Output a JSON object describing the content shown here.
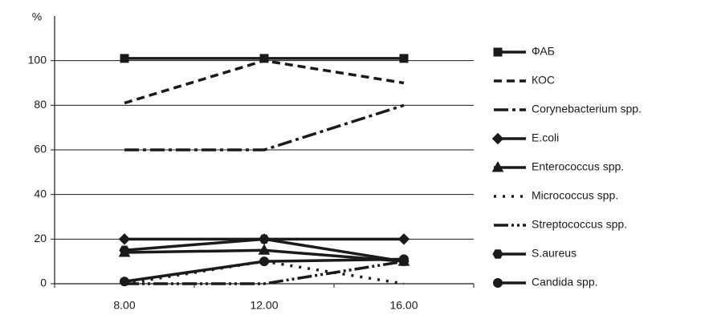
{
  "chart_data": {
    "type": "line",
    "y_label": "%",
    "categories": [
      "8.00",
      "12.00",
      "16.00"
    ],
    "ylim": [
      0,
      120
    ],
    "yticks": [
      0,
      20,
      40,
      60,
      80,
      100
    ],
    "grid": true,
    "series": [
      {
        "name": "ФАБ",
        "color": "#1a1a1a",
        "marker": "square",
        "dash": "solid",
        "values": [
          101,
          101,
          101
        ]
      },
      {
        "name": "КОС",
        "color": "#1a1a1a",
        "marker": "none",
        "dash": "dashed",
        "values": [
          81,
          100,
          90
        ]
      },
      {
        "name": "Corynebacterium spp.",
        "color": "#1a1a1a",
        "marker": "none",
        "dash": "dashdot",
        "values": [
          60,
          60,
          80
        ]
      },
      {
        "name": "E.coli",
        "color": "#1a1a1a",
        "marker": "diamond",
        "dash": "solid",
        "values": [
          20,
          20,
          20
        ]
      },
      {
        "name": "Enterococcus spp.",
        "color": "#1a1a1a",
        "marker": "triangle",
        "dash": "solid",
        "values": [
          14,
          15,
          10
        ]
      },
      {
        "name": "Micrococcus spp.",
        "color": "#1a1a1a",
        "marker": "none",
        "dash": "dotted",
        "values": [
          0,
          10,
          0
        ]
      },
      {
        "name": "Streptococcus spp.",
        "color": "#1a1a1a",
        "marker": "none",
        "dash": "dashdotdot",
        "values": [
          0,
          0,
          10
        ]
      },
      {
        "name": "S.aureus",
        "color": "#1a1a1a",
        "marker": "hexagon",
        "dash": "solid",
        "values": [
          15,
          20,
          10
        ]
      },
      {
        "name": "Candida spp.",
        "color": "#1a1a1a",
        "marker": "circle",
        "dash": "solid",
        "values": [
          1,
          10,
          11
        ]
      }
    ]
  }
}
